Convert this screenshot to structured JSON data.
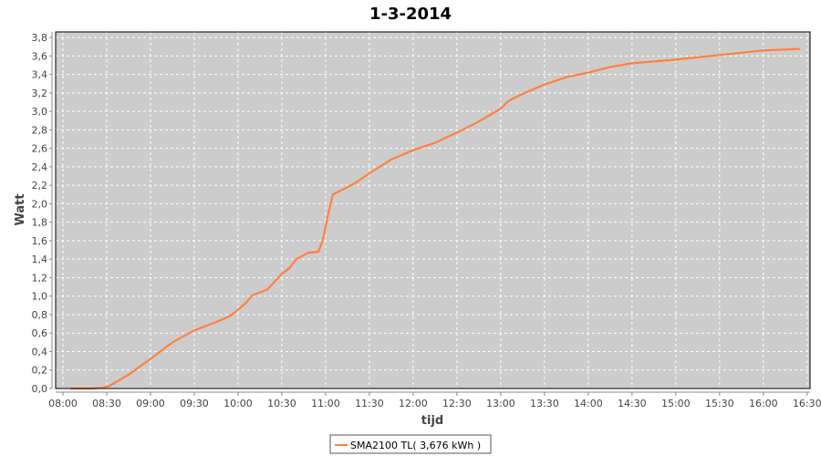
{
  "chart_data": {
    "type": "line",
    "title": "1-3-2014",
    "xlabel": "tijd",
    "ylabel": "Watt",
    "xlim": [
      "07:55",
      "16:32"
    ],
    "ylim": [
      0,
      3.86
    ],
    "grid": true,
    "legend_position": "bottom",
    "x_ticks": [
      "08:00",
      "08:30",
      "09:00",
      "09:30",
      "10:00",
      "10:30",
      "11:00",
      "11:30",
      "12:00",
      "12:30",
      "13:00",
      "13:30",
      "14:00",
      "14:30",
      "15:00",
      "15:30",
      "16:00",
      "16:30"
    ],
    "y_ticks": [
      "0,0",
      "0,2",
      "0,4",
      "0,6",
      "0,8",
      "1,0",
      "1,2",
      "1,4",
      "1,6",
      "1,8",
      "2,0",
      "2,2",
      "2,4",
      "2,6",
      "2,8",
      "3,0",
      "3,2",
      "3,4",
      "3,6",
      "3,8"
    ],
    "series": [
      {
        "name": "SMA2100 TL( 3,676 kWh )",
        "color": "#ff8040",
        "x": [
          "08:05",
          "08:20",
          "08:28",
          "08:32",
          "08:45",
          "09:00",
          "09:15",
          "09:30",
          "09:45",
          "09:55",
          "10:05",
          "10:10",
          "10:20",
          "10:30",
          "10:35",
          "10:40",
          "10:48",
          "10:55",
          "10:58",
          "11:02",
          "11:05",
          "11:10",
          "11:20",
          "11:30",
          "11:40",
          "11:45",
          "12:00",
          "12:15",
          "12:30",
          "12:45",
          "13:00",
          "13:05",
          "13:15",
          "13:30",
          "13:45",
          "14:00",
          "14:15",
          "14:30",
          "15:00",
          "15:30",
          "16:00",
          "16:25"
        ],
        "values": [
          0.0,
          0.0,
          0.01,
          0.03,
          0.15,
          0.32,
          0.5,
          0.63,
          0.72,
          0.79,
          0.92,
          1.01,
          1.07,
          1.24,
          1.3,
          1.4,
          1.47,
          1.48,
          1.6,
          1.9,
          2.1,
          2.14,
          2.22,
          2.33,
          2.43,
          2.48,
          2.58,
          2.66,
          2.77,
          2.89,
          3.03,
          3.11,
          3.19,
          3.29,
          3.37,
          3.42,
          3.48,
          3.52,
          3.56,
          3.61,
          3.66,
          3.676
        ]
      }
    ]
  }
}
